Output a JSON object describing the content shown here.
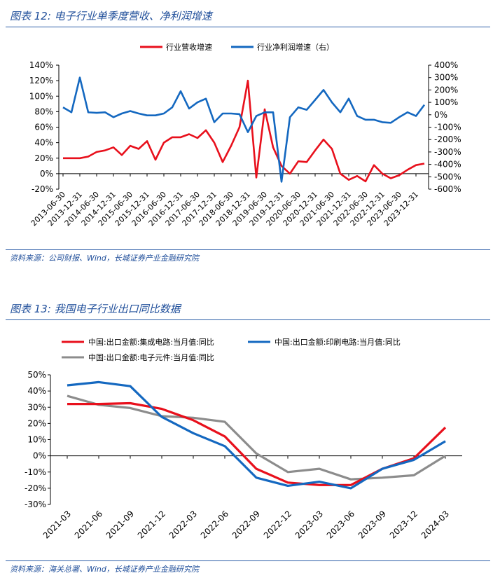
{
  "fig12": {
    "title": "图表 12: 电子行业单季度营收、净利润增速",
    "source": "资料来源：公司财报、Wind，长城证券产业金融研究院"
  },
  "fig13": {
    "title": "图表 13: 我国电子行业出口同比数据",
    "source": "资料来源：海关总署、Wind，长城证券产业金融研究院"
  },
  "chart_data": [
    {
      "type": "line",
      "categories": [
        "2013-06-30",
        "2013-09-30",
        "2013-12-31",
        "2014-03-31",
        "2014-06-30",
        "2014-09-30",
        "2014-12-31",
        "2015-03-31",
        "2015-06-30",
        "2015-09-30",
        "2015-12-31",
        "2016-03-31",
        "2016-06-30",
        "2016-09-30",
        "2016-12-31",
        "2017-03-31",
        "2017-06-30",
        "2017-09-30",
        "2017-12-31",
        "2018-03-31",
        "2018-06-30",
        "2018-09-30",
        "2018-12-31",
        "2019-03-31",
        "2019-06-30",
        "2019-09-30",
        "2019-12-31",
        "2020-03-31",
        "2020-06-30",
        "2020-09-30",
        "2020-12-31",
        "2021-03-31",
        "2021-06-30",
        "2021-09-30",
        "2021-12-31",
        "2022-03-31",
        "2022-06-30",
        "2022-09-30",
        "2022-12-31",
        "2023-03-31",
        "2023-06-30",
        "2023-09-30",
        "2023-12-31",
        "2024-03-31"
      ],
      "tick_labels": [
        "2013-06-30",
        "2013-12-31",
        "2014-06-30",
        "2014-12-31",
        "2015-06-30",
        "2015-12-31",
        "2016-06-30",
        "2016-12-31",
        "2017-06-30",
        "2017-12-31",
        "2018-06-30",
        "2018-12-31",
        "2019-06-30",
        "2019-12-31",
        "2020-06-30",
        "2020-12-31",
        "2021-06-30",
        "2021-12-31",
        "2022-06-30",
        "2022-12-31",
        "2023-06-30",
        "2023-12-31"
      ],
      "series": [
        {
          "name": "行业营收增速",
          "axis": "left",
          "color": "#e8101c",
          "values": [
            20,
            20,
            20,
            22,
            28,
            30,
            34,
            24,
            36,
            32,
            42,
            18,
            40,
            47,
            47,
            51,
            46,
            56,
            40,
            15,
            36,
            60,
            120,
            -5,
            83,
            34,
            10,
            0,
            16,
            15,
            30,
            44,
            32,
            0,
            -8,
            -3,
            -10,
            11,
            0,
            -6,
            -2,
            5,
            11,
            13
          ]
        },
        {
          "name": "行业净利润增速（右）",
          "axis": "right",
          "color": "#1468c0",
          "values": [
            60,
            20,
            300,
            20,
            15,
            20,
            -20,
            10,
            30,
            10,
            -5,
            -5,
            10,
            60,
            190,
            50,
            100,
            130,
            -60,
            10,
            10,
            5,
            -140,
            -10,
            20,
            20,
            -540,
            -20,
            60,
            40,
            120,
            200,
            100,
            20,
            130,
            -10,
            -40,
            -40,
            -60,
            -65,
            -20,
            20,
            -10,
            80
          ]
        }
      ],
      "y_left": {
        "ticks": [
          "140%",
          "120%",
          "100%",
          "80%",
          "60%",
          "40%",
          "20%",
          "0%",
          "-20%"
        ],
        "ylim": [
          -20,
          140
        ]
      },
      "y_right": {
        "ticks": [
          "400%",
          "300%",
          "200%",
          "100%",
          "0%",
          "-100%",
          "-200%",
          "-300%",
          "-400%",
          "-500%",
          "-600%"
        ],
        "ylim": [
          -600,
          400
        ]
      },
      "legend": "top-center",
      "grid": false
    },
    {
      "type": "line",
      "categories": [
        "2021-03",
        "2021-06",
        "2021-09",
        "2021-12",
        "2022-03",
        "2022-06",
        "2022-09",
        "2022-12",
        "2023-03",
        "2023-06",
        "2023-09",
        "2023-12",
        "2024-03"
      ],
      "series": [
        {
          "name": "中国:出口金额:集成电路:当月值:同比",
          "color": "#e8101c",
          "values": [
            32,
            32,
            32.5,
            29,
            22,
            12,
            -8,
            -16.5,
            -18,
            -18,
            -8,
            -1.5,
            17.5
          ]
        },
        {
          "name": "中国:出口金额:印刷电路:当月值:同比",
          "color": "#1468c0",
          "values": [
            43.5,
            45.5,
            43,
            24,
            14,
            6,
            -13.5,
            -18.5,
            -16,
            -20,
            -8,
            -2.5,
            9
          ]
        },
        {
          "name": "中国:出口金额:电子元件:当月值:同比",
          "color": "#8c8c8c",
          "values": [
            37,
            31.5,
            29.5,
            24.5,
            23.5,
            21,
            1.5,
            -10,
            -8,
            -14.5,
            -13.5,
            -12,
            0
          ]
        }
      ],
      "y": {
        "ticks": [
          "50%",
          "40%",
          "30%",
          "20%",
          "10%",
          "0%",
          "-10%",
          "-20%",
          "-30%"
        ],
        "ylim": [
          -30,
          50
        ]
      },
      "legend": "top-left",
      "grid": false
    }
  ]
}
